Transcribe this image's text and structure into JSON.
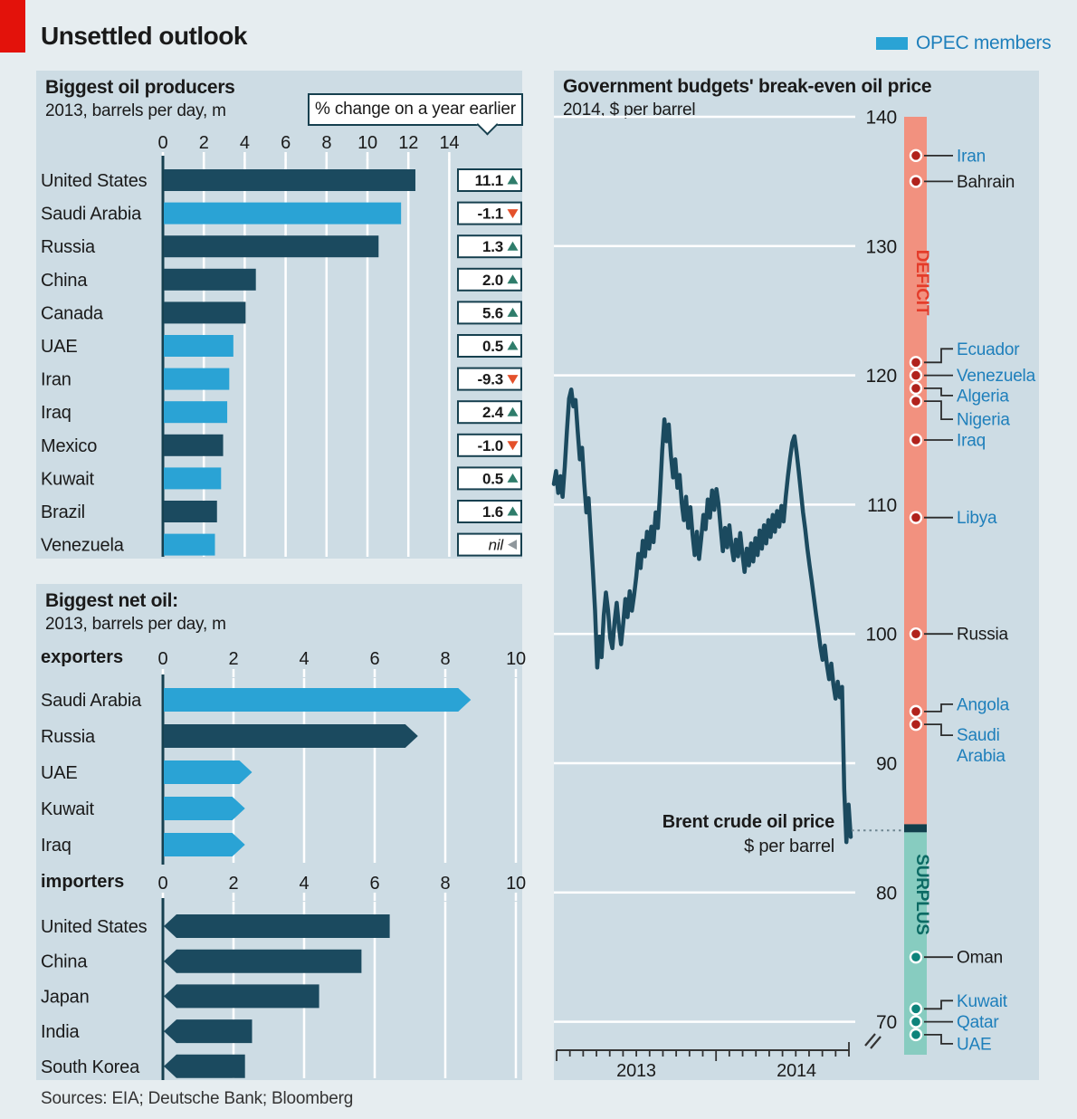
{
  "page": {
    "title": "Unsettled outlook",
    "sources": "Sources: EIA; Deutsche Bank; Bloomberg"
  },
  "legend": {
    "label": "OPEC members",
    "color": "#2aa3d5"
  },
  "colors": {
    "accent_red": "#e3120b",
    "dark": "#1b4a5f",
    "opec_blue": "#2aa3d5",
    "blue_text": "#1e7fbb",
    "badge_border": "#16404f",
    "up": "#2f7d6b",
    "down": "#e4512b",
    "flat": "#8f979c",
    "salmon": "#f2917f",
    "deficit_red": "#e43c2a",
    "teal": "#87ccc0",
    "surplus_teal": "#0c6a64",
    "cap": "#113f4c",
    "deficit_dot": "#b1221c",
    "surplus_dot": "#0e837b",
    "grid": "#ffffff",
    "axis_dark": "#16404f",
    "text": "#1a1a1a"
  },
  "chart_data": [
    {
      "id": "producers",
      "type": "bar",
      "title": "Biggest oil producers",
      "subtitle": "2013, barrels per day, m",
      "callout": "% change on a year earlier",
      "xlim": [
        0,
        14
      ],
      "xticks": [
        0,
        2,
        4,
        6,
        8,
        10,
        12,
        14
      ],
      "rows": [
        {
          "label": "United States",
          "value": 12.3,
          "opec": false,
          "change": "11.1",
          "dir": "up"
        },
        {
          "label": "Saudi Arabia",
          "value": 11.6,
          "opec": true,
          "change": "-1.1",
          "dir": "down"
        },
        {
          "label": "Russia",
          "value": 10.5,
          "opec": false,
          "change": "1.3",
          "dir": "up"
        },
        {
          "label": "China",
          "value": 4.5,
          "opec": false,
          "change": "2.0",
          "dir": "up"
        },
        {
          "label": "Canada",
          "value": 4.0,
          "opec": false,
          "change": "5.6",
          "dir": "up"
        },
        {
          "label": "UAE",
          "value": 3.4,
          "opec": true,
          "change": "0.5",
          "dir": "up"
        },
        {
          "label": "Iran",
          "value": 3.2,
          "opec": true,
          "change": "-9.3",
          "dir": "down"
        },
        {
          "label": "Iraq",
          "value": 3.1,
          "opec": true,
          "change": "2.4",
          "dir": "up"
        },
        {
          "label": "Mexico",
          "value": 2.9,
          "opec": false,
          "change": "-1.0",
          "dir": "down"
        },
        {
          "label": "Kuwait",
          "value": 2.8,
          "opec": true,
          "change": "0.5",
          "dir": "up"
        },
        {
          "label": "Brazil",
          "value": 2.6,
          "opec": false,
          "change": "1.6",
          "dir": "up"
        },
        {
          "label": "Venezuela",
          "value": 2.5,
          "opec": true,
          "change": "nil",
          "dir": "flat"
        }
      ]
    },
    {
      "id": "net-oil",
      "type": "bar",
      "title": "Biggest net oil:",
      "subtitle": "2013, barrels per day, m",
      "xlim": [
        0,
        10
      ],
      "xticks": [
        0,
        2,
        4,
        6,
        8,
        10
      ],
      "sections": [
        {
          "label": "exporters",
          "rows": [
            {
              "label": "Saudi Arabia",
              "value": 8.7,
              "opec": true
            },
            {
              "label": "Russia",
              "value": 7.2,
              "opec": false
            },
            {
              "label": "UAE",
              "value": 2.5,
              "opec": true
            },
            {
              "label": "Kuwait",
              "value": 2.3,
              "opec": true
            },
            {
              "label": "Iraq",
              "value": 2.3,
              "opec": true
            }
          ]
        },
        {
          "label": "importers",
          "rows": [
            {
              "label": "United States",
              "value": 6.4,
              "opec": false
            },
            {
              "label": "China",
              "value": 5.6,
              "opec": false
            },
            {
              "label": "Japan",
              "value": 4.4,
              "opec": false
            },
            {
              "label": "India",
              "value": 2.5,
              "opec": false
            },
            {
              "label": "South Korea",
              "value": 2.3,
              "opec": false
            }
          ]
        }
      ]
    },
    {
      "id": "breakeven",
      "type": "scatter-line",
      "title": "Government budgets' break-even oil price",
      "subtitle": "2014, $ per barrel",
      "ylim": [
        70,
        140
      ],
      "yticks": [
        140,
        130,
        120,
        110,
        100,
        90,
        80,
        70
      ],
      "axis_break": true,
      "zones": {
        "deficit_label": "DEFICIT",
        "surplus_label": "SURPLUS",
        "boundary": 85
      },
      "countries": [
        {
          "name": "Iran",
          "value": 137,
          "opec": true,
          "zone": "deficit",
          "dy": 0
        },
        {
          "name": "Bahrain",
          "value": 135,
          "opec": false,
          "zone": "deficit",
          "dy": 0
        },
        {
          "name": "Ecuador",
          "value": 121,
          "opec": true,
          "zone": "deficit",
          "dy": -15
        },
        {
          "name": "Venezuela",
          "value": 120,
          "opec": true,
          "zone": "deficit",
          "dy": 0
        },
        {
          "name": "Algeria",
          "value": 119,
          "opec": true,
          "zone": "deficit",
          "dy": 8
        },
        {
          "name": "Nigeria",
          "value": 118,
          "opec": true,
          "zone": "deficit",
          "dy": 20
        },
        {
          "name": "Iraq",
          "value": 115,
          "opec": true,
          "zone": "deficit",
          "dy": 0
        },
        {
          "name": "Libya",
          "value": 109,
          "opec": true,
          "zone": "deficit",
          "dy": 0
        },
        {
          "name": "Russia",
          "value": 100,
          "opec": false,
          "zone": "deficit",
          "dy": 0
        },
        {
          "name": "Angola",
          "value": 94,
          "opec": true,
          "zone": "deficit",
          "dy": -8
        },
        {
          "name": "Saudi Arabia",
          "value": 93,
          "opec": true,
          "zone": "deficit",
          "dy": 12,
          "two_line": [
            "Saudi",
            "Arabia"
          ]
        },
        {
          "name": "Oman",
          "value": 75,
          "opec": false,
          "zone": "surplus",
          "dy": 0
        },
        {
          "name": "Kuwait",
          "value": 71,
          "opec": true,
          "zone": "surplus",
          "dy": -9
        },
        {
          "name": "Qatar",
          "value": 70,
          "opec": true,
          "zone": "surplus",
          "dy": 0
        },
        {
          "name": "UAE",
          "value": 69,
          "opec": true,
          "zone": "surplus",
          "dy": 10
        }
      ],
      "line": {
        "label": "Brent crude oil price",
        "sublabel": "$ per barrel",
        "years": [
          "2013",
          "2014"
        ],
        "end_dotted_value": 84.8,
        "prices": [
          111.6,
          112.6,
          110.9,
          112.2,
          110.6,
          112.9,
          115.7,
          118.2,
          118.9,
          117.6,
          118.1,
          115.7,
          113.5,
          114.4,
          111.7,
          109.4,
          110.5,
          107.7,
          104.9,
          101.8,
          97.4,
          99.8,
          98.2,
          101.4,
          103.2,
          101.8,
          99.7,
          98.9,
          100.9,
          102.4,
          100.6,
          99.2,
          100.8,
          102.7,
          101.3,
          103.3,
          101.8,
          103.0,
          104.4,
          106.2,
          105.1,
          107.2,
          106.0,
          107.9,
          106.6,
          108.3,
          107.1,
          109.4,
          108.2,
          110.9,
          114.2,
          116.6,
          114.9,
          116.2,
          113.8,
          112.1,
          113.5,
          111.3,
          112.3,
          110.1,
          108.8,
          110.6,
          108.2,
          109.8,
          107.7,
          106.1,
          107.9,
          105.8,
          107.4,
          109.2,
          108.1,
          110.4,
          109.0,
          111.1,
          109.6,
          111.2,
          110.0,
          108.1,
          106.4,
          108.2,
          106.7,
          108.4,
          106.8,
          105.7,
          107.3,
          106.0,
          107.8,
          106.2,
          104.8,
          106.6,
          105.3,
          107.0,
          105.6,
          107.4,
          106.1,
          108.0,
          106.6,
          108.4,
          107.0,
          108.8,
          107.5,
          109.2,
          107.9,
          109.5,
          108.3,
          109.9,
          108.7,
          110.6,
          112.2,
          113.6,
          114.8,
          115.3,
          114.1,
          112.6,
          111.0,
          109.4,
          108.1,
          106.6,
          105.3,
          104.1,
          102.8,
          101.5,
          100.3,
          99.0,
          98.0,
          99.1,
          97.6,
          96.5,
          97.7,
          96.1,
          95.0,
          96.3,
          95.1,
          95.9,
          88.0,
          83.9,
          86.8,
          84.3
        ]
      }
    }
  ]
}
